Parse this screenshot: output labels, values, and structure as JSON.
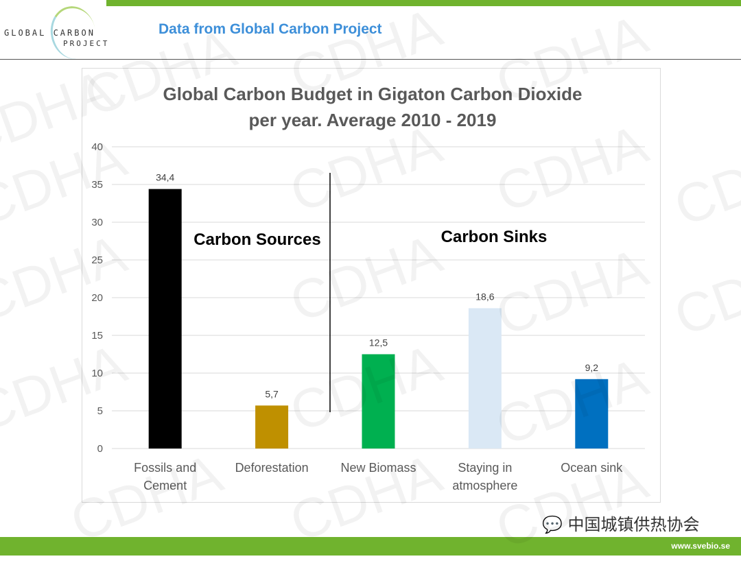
{
  "header": {
    "logo_text_1": "GLOBAL CARBON",
    "logo_text_2": "PROJECT",
    "title": "Data from Global Carbon Project"
  },
  "footer": {
    "url": "www.svebio.se",
    "wechat_label": "中国城镇供热协会"
  },
  "watermark": "CDHA",
  "colors": {
    "accent": "#70b32e",
    "heading": "#3d8fd9"
  },
  "chart_data": {
    "type": "bar",
    "title": "Global Carbon Budget in Gigaton Carbon Dioxide",
    "subtitle": "per year. Average 2010 - 2019",
    "categories": [
      [
        "Fossils and",
        "Cement"
      ],
      [
        "Deforestation"
      ],
      [
        "New Biomass"
      ],
      [
        "Staying in",
        "atmosphere"
      ],
      [
        "Ocean sink"
      ]
    ],
    "values": [
      34.4,
      5.7,
      12.5,
      18.6,
      9.2
    ],
    "data_labels": [
      "34,4",
      "5,7",
      "12,5",
      "18,6",
      "9,2"
    ],
    "bar_colors": [
      "#000000",
      "#bf9000",
      "#00b050",
      "#dae8f5",
      "#0070c0"
    ],
    "ylim": [
      0,
      40
    ],
    "yticks": [
      0,
      5,
      10,
      15,
      20,
      25,
      30,
      35,
      40
    ],
    "grid": true,
    "annotations": [
      "Carbon Sources",
      "Carbon Sinks"
    ]
  }
}
